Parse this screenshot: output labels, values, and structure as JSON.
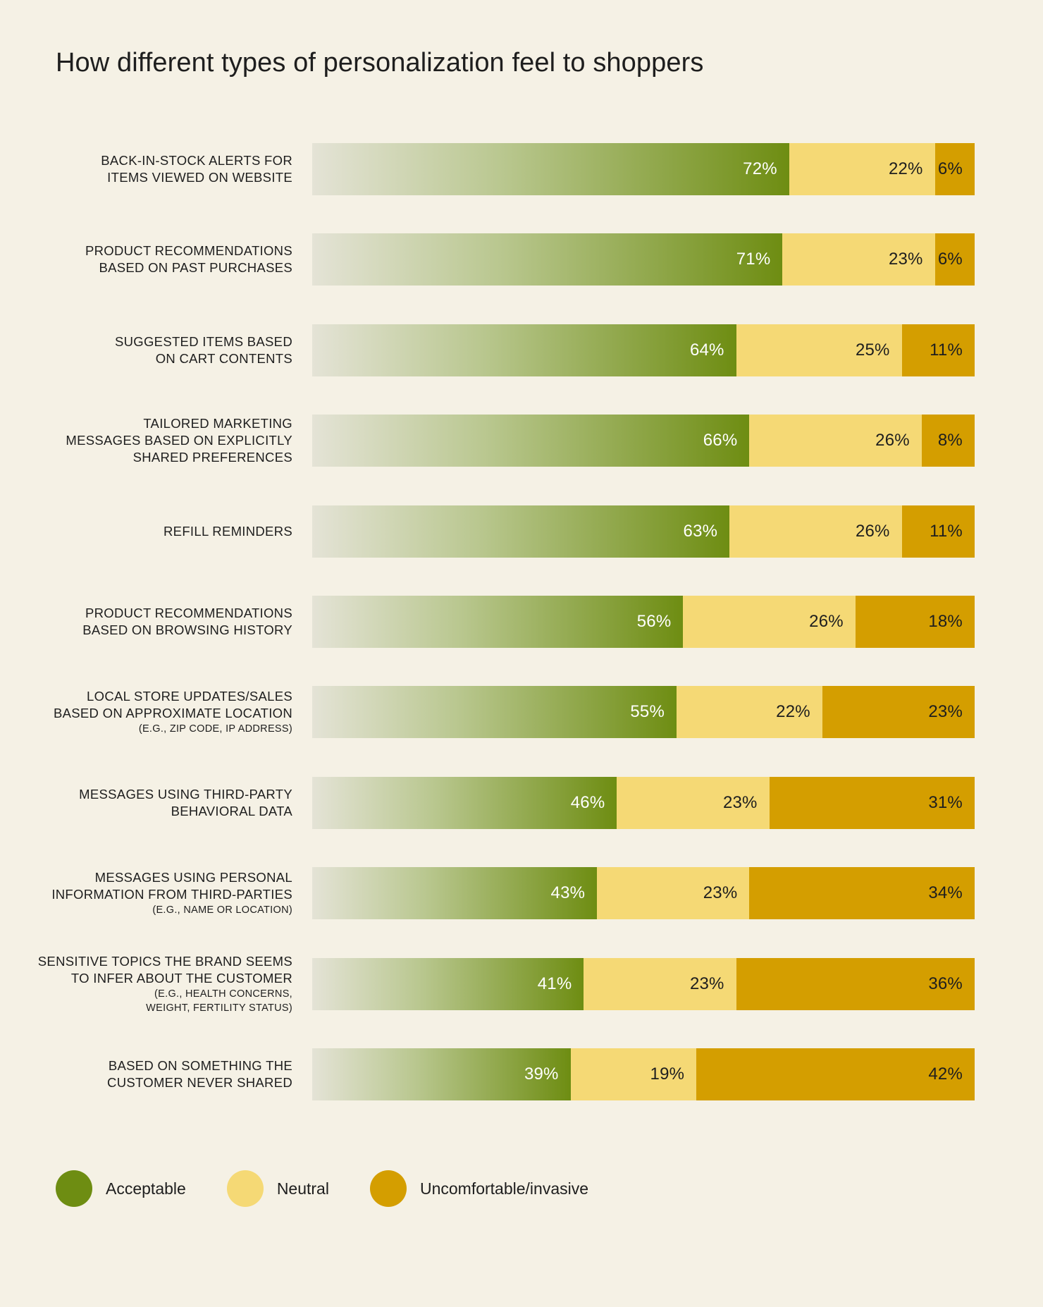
{
  "title": "How different types of personalization feel to shoppers",
  "chart_data": {
    "type": "bar",
    "orientation": "horizontal",
    "stacked": true,
    "title": "How different types of personalization feel to shoppers",
    "categories": [
      "Back-in-stock alerts for items viewed on website",
      "Product recommendations based on past purchases",
      "Suggested items based on cart contents",
      "Tailored marketing messages based on explicitly shared preferences",
      "Refill reminders",
      "Product recommendations based on browsing history",
      "Local store updates/sales based on approximate location (e.g., zip code, IP address)",
      "Messages using third-party behavioral data",
      "Messages using personal information from third-parties (e.g., name or location)",
      "Sensitive topics the brand seems to infer about the customer (e.g., health concerns, weight, fertility status)",
      "Based on something the customer never shared"
    ],
    "rows": [
      {
        "lines": [
          "Back-in-stock alerts for",
          "items viewed on website"
        ],
        "sub": []
      },
      {
        "lines": [
          "Product recommendations",
          "based on past purchases"
        ],
        "sub": []
      },
      {
        "lines": [
          "Suggested items based",
          "on cart contents"
        ],
        "sub": []
      },
      {
        "lines": [
          "Tailored marketing",
          "messages based on explicitly",
          "shared preferences"
        ],
        "sub": []
      },
      {
        "lines": [
          "Refill reminders"
        ],
        "sub": []
      },
      {
        "lines": [
          "Product recommendations",
          "based on browsing history"
        ],
        "sub": []
      },
      {
        "lines": [
          "Local store updates/sales",
          "based on approximate location"
        ],
        "sub": [
          "(e.g., zip code, IP address)"
        ]
      },
      {
        "lines": [
          "Messages using third-party",
          "behavioral data"
        ],
        "sub": []
      },
      {
        "lines": [
          "Messages using personal",
          "information from third-parties"
        ],
        "sub": [
          "(e.g., name or location)"
        ]
      },
      {
        "lines": [
          "Sensitive topics the brand seems",
          "to infer about the customer"
        ],
        "sub": [
          "(e.g., health concerns,",
          "weight, fertility status)"
        ]
      },
      {
        "lines": [
          "Based on something the",
          "customer never shared"
        ],
        "sub": []
      }
    ],
    "series": [
      {
        "name": "Acceptable",
        "key": "acc",
        "color": "#6e8d12",
        "values": [
          72,
          71,
          64,
          66,
          63,
          56,
          55,
          46,
          43,
          41,
          39
        ]
      },
      {
        "name": "Neutral",
        "key": "neu",
        "color": "#f5d975",
        "values": [
          22,
          23,
          25,
          26,
          26,
          26,
          22,
          23,
          23,
          23,
          19
        ]
      },
      {
        "name": "Uncomfortable/invasive",
        "key": "unc",
        "color": "#d49e00",
        "values": [
          6,
          6,
          11,
          8,
          11,
          18,
          23,
          31,
          34,
          36,
          42
        ]
      }
    ],
    "value_suffix": "%",
    "xlim": [
      0,
      100
    ],
    "grid": false,
    "legend": "bottom-left"
  }
}
